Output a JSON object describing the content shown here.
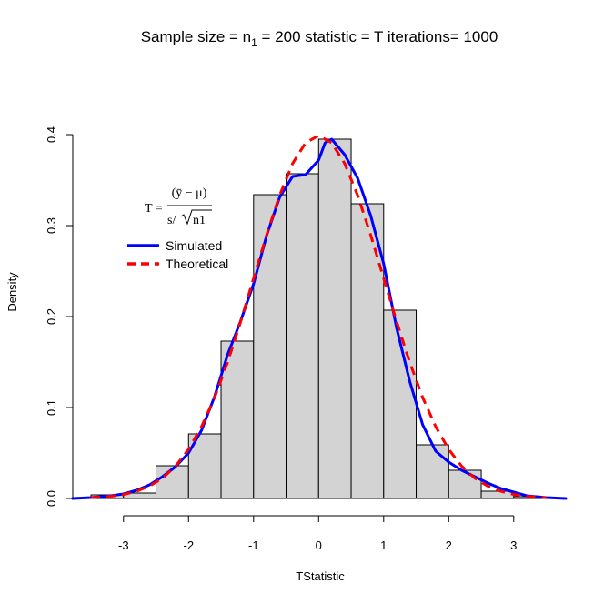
{
  "chart_data": {
    "type": "bar",
    "title": {
      "prefix": "Sample size = n",
      "subscript": "1",
      "suffix": " = 200 statistic = T iterations= 1000"
    },
    "xlabel": "TStatistic",
    "ylabel": "Density",
    "xlim": [
      -3.78,
      3.8
    ],
    "ylim": [
      0,
      0.4
    ],
    "x_ticks": [
      -3,
      -2,
      -1,
      0,
      1,
      2,
      3
    ],
    "y_ticks": [
      0.0,
      0.1,
      0.2,
      0.3,
      0.4
    ],
    "x_tick_labels": [
      "-3",
      "-2",
      "-1",
      "0",
      "1",
      "2",
      "3"
    ],
    "y_tick_labels": [
      "0.0",
      "0.1",
      "0.2",
      "0.3",
      "0.4"
    ],
    "histogram": {
      "bin_edges": [
        -3.5,
        -3.0,
        -2.5,
        -2.0,
        -1.5,
        -1.0,
        -0.5,
        0.0,
        0.5,
        1.0,
        1.5,
        2.0,
        2.5,
        3.0,
        3.5
      ],
      "densities": [
        0.004,
        0.006,
        0.036,
        0.071,
        0.173,
        0.334,
        0.357,
        0.395,
        0.324,
        0.207,
        0.059,
        0.031,
        0.008,
        0.002
      ],
      "fill_color": "#d3d3d3",
      "edge_color": "#000000"
    },
    "series": [
      {
        "name": "Simulated",
        "color": "#0000ff",
        "style": "solid",
        "x": [
          -3.78,
          -3.5,
          -3.2,
          -3.0,
          -2.8,
          -2.6,
          -2.4,
          -2.2,
          -2.0,
          -1.8,
          -1.6,
          -1.4,
          -1.2,
          -1.0,
          -0.8,
          -0.6,
          -0.4,
          -0.2,
          0.0,
          0.1,
          0.2,
          0.4,
          0.6,
          0.8,
          1.0,
          1.2,
          1.4,
          1.6,
          1.8,
          2.0,
          2.2,
          2.4,
          2.6,
          2.8,
          3.0,
          3.2,
          3.5,
          3.8
        ],
        "y": [
          0.0,
          0.001,
          0.003,
          0.005,
          0.009,
          0.015,
          0.024,
          0.035,
          0.05,
          0.075,
          0.112,
          0.158,
          0.195,
          0.236,
          0.289,
          0.331,
          0.354,
          0.356,
          0.372,
          0.391,
          0.395,
          0.378,
          0.352,
          0.311,
          0.258,
          0.187,
          0.129,
          0.081,
          0.052,
          0.04,
          0.031,
          0.024,
          0.017,
          0.011,
          0.007,
          0.003,
          0.001,
          0.0
        ]
      },
      {
        "name": "Theoretical",
        "color": "#ff0000",
        "style": "dashed",
        "x": [
          -3.5,
          -3.2,
          -3.0,
          -2.8,
          -2.6,
          -2.4,
          -2.2,
          -2.0,
          -1.8,
          -1.6,
          -1.4,
          -1.2,
          -1.0,
          -0.8,
          -0.6,
          -0.4,
          -0.2,
          0.0,
          0.2,
          0.4,
          0.6,
          0.8,
          1.0,
          1.2,
          1.4,
          1.6,
          1.8,
          2.0,
          2.2,
          2.4,
          2.6,
          2.8,
          3.0,
          3.2,
          3.5
        ],
        "y": [
          0.0009,
          0.0024,
          0.0044,
          0.0079,
          0.0136,
          0.0224,
          0.0355,
          0.054,
          0.079,
          0.1109,
          0.1497,
          0.1942,
          0.242,
          0.2897,
          0.3332,
          0.3683,
          0.391,
          0.3989,
          0.391,
          0.3683,
          0.3332,
          0.2897,
          0.242,
          0.1942,
          0.1497,
          0.1109,
          0.079,
          0.054,
          0.0355,
          0.0224,
          0.0136,
          0.0079,
          0.0044,
          0.0024,
          0.0009
        ]
      }
    ],
    "legend": {
      "placement": "top-left",
      "entries": [
        {
          "label": "Simulated",
          "color": "#0000ff",
          "style": "solid"
        },
        {
          "label": "Theoretical",
          "color": "#ff0000",
          "style": "dashed"
        }
      ]
    },
    "formula": {
      "lhs": "T =",
      "numerator": "(ȳ − μ)",
      "denominator_prefix": "s/",
      "denominator_radicand": "n1"
    }
  }
}
